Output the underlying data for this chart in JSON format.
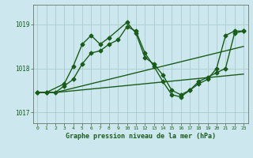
{
  "title": "Graphe pression niveau de la mer (hPa)",
  "bg_color": "#cce8ee",
  "grid_color": "#aacccc",
  "line_color": "#1a5c1a",
  "ylim": [
    1016.75,
    1019.45
  ],
  "xlim": [
    -0.5,
    23.5
  ],
  "yticks": [
    1017,
    1018,
    1019
  ],
  "xticks": [
    0,
    1,
    2,
    3,
    4,
    5,
    6,
    7,
    8,
    9,
    10,
    11,
    12,
    13,
    14,
    15,
    16,
    17,
    18,
    19,
    20,
    21,
    22,
    23
  ],
  "series": [
    {
      "x": [
        0,
        1,
        2,
        3,
        4,
        5,
        6,
        7,
        8,
        9,
        10,
        11,
        12,
        13,
        14,
        15,
        16,
        17,
        18,
        19,
        20,
        21,
        22,
        23
      ],
      "y": [
        1017.45,
        1017.45,
        1017.45,
        1017.5,
        1017.55,
        1017.6,
        1017.65,
        1017.7,
        1017.75,
        1017.8,
        1017.85,
        1017.9,
        1017.95,
        1018.0,
        1018.05,
        1018.1,
        1018.15,
        1018.2,
        1018.25,
        1018.3,
        1018.35,
        1018.4,
        1018.45,
        1018.5
      ],
      "marker": null,
      "lw": 1.0
    },
    {
      "x": [
        0,
        1,
        2,
        3,
        4,
        5,
        6,
        7,
        8,
        9,
        10,
        11,
        12,
        13,
        14,
        15,
        16,
        17,
        18,
        19,
        20,
        21,
        22,
        23
      ],
      "y": [
        1017.45,
        1017.45,
        1017.45,
        1017.47,
        1017.49,
        1017.51,
        1017.53,
        1017.55,
        1017.57,
        1017.59,
        1017.61,
        1017.63,
        1017.65,
        1017.67,
        1017.69,
        1017.71,
        1017.73,
        1017.75,
        1017.77,
        1017.79,
        1017.81,
        1017.83,
        1017.85,
        1017.87
      ],
      "marker": null,
      "lw": 1.0
    },
    {
      "x": [
        0,
        1,
        3,
        4,
        5,
        6,
        7,
        8,
        10,
        11,
        12,
        13,
        14,
        15,
        16,
        17,
        18,
        19,
        20,
        21,
        22,
        23
      ],
      "y": [
        1017.45,
        1017.45,
        1017.65,
        1018.05,
        1018.55,
        1018.75,
        1018.55,
        1018.7,
        1019.05,
        1018.8,
        1018.25,
        1018.1,
        1017.85,
        1017.5,
        1017.4,
        1017.5,
        1017.65,
        1017.75,
        1018.0,
        1018.75,
        1018.85,
        1018.85
      ],
      "marker": "D",
      "lw": 1.0,
      "ms": 2.5
    },
    {
      "x": [
        0,
        1,
        2,
        3,
        4,
        5,
        6,
        7,
        8,
        9,
        10,
        11,
        12,
        13,
        14,
        15,
        16,
        17,
        18,
        19,
        20,
        21,
        22,
        23
      ],
      "y": [
        1017.45,
        1017.45,
        1017.45,
        1017.6,
        1017.75,
        1018.1,
        1018.35,
        1018.4,
        1018.55,
        1018.65,
        1018.95,
        1018.85,
        1018.35,
        1018.05,
        1017.7,
        1017.4,
        1017.35,
        1017.5,
        1017.7,
        1017.8,
        1017.9,
        1018.0,
        1018.8,
        1018.85
      ],
      "marker": "D",
      "lw": 1.0,
      "ms": 2.5
    }
  ]
}
